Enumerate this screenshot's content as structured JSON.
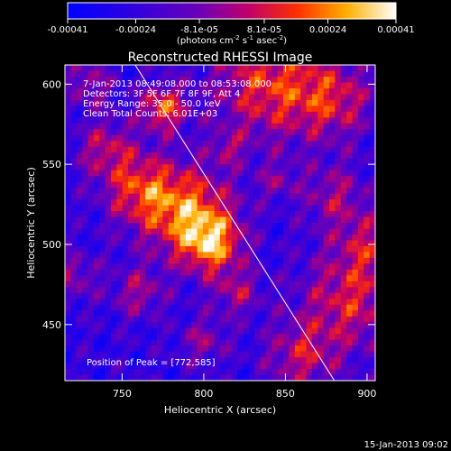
{
  "chart_data": {
    "type": "heatmap",
    "title": "Reconstructed RHESSI Image",
    "xlabel": "Heliocentric X (arcsec)",
    "ylabel": "Heliocentric Y (arcsec)",
    "xlim": [
      715,
      905
    ],
    "ylim": [
      415,
      612
    ],
    "x_ticks": [
      "750",
      "800",
      "850",
      "900"
    ],
    "x_tick_values": [
      750,
      800,
      850,
      900
    ],
    "y_ticks": [
      "450",
      "500",
      "550",
      "600"
    ],
    "y_tick_values": [
      450,
      500,
      550,
      600
    ],
    "colorbar": {
      "tick_labels": [
        "-0.00041",
        "-0.00024",
        "-8.1e-05",
        "8.1e-05",
        "0.00024",
        "0.00041"
      ],
      "tick_values": [
        -0.00041,
        -0.00024,
        -8.1e-05,
        8.1e-05,
        0.00024,
        0.00041
      ],
      "range": [
        -0.00041,
        0.00041
      ],
      "unit_prefix": "(photons cm",
      "unit_exp1": "-2",
      "unit_mid": " s",
      "unit_exp2": "-1",
      "unit_end": " asec",
      "unit_exp3": "-2",
      "unit_close": ")"
    },
    "annotations": [
      "7-Jan-2013 08:49:08.000 to 08:53:08.000",
      "Detectors: 3F 5F 6F 7F 8F 9F, Att 4",
      "Energy Range: 35.0 - 50.0 keV",
      "Clean   Total Counts: 6.01E+03"
    ],
    "peak_label": "Position of Peak = [772,585]",
    "peak": [
      772,
      585
    ],
    "limb_line": {
      "from": [
        758,
        612
      ],
      "to": [
        880,
        415
      ]
    },
    "colors": {
      "low": "#0000ff",
      "mid": "#7000b0",
      "high": "#ffffff"
    }
  },
  "footer": {
    "timestamp": "15-Jan-2013 09:02"
  }
}
